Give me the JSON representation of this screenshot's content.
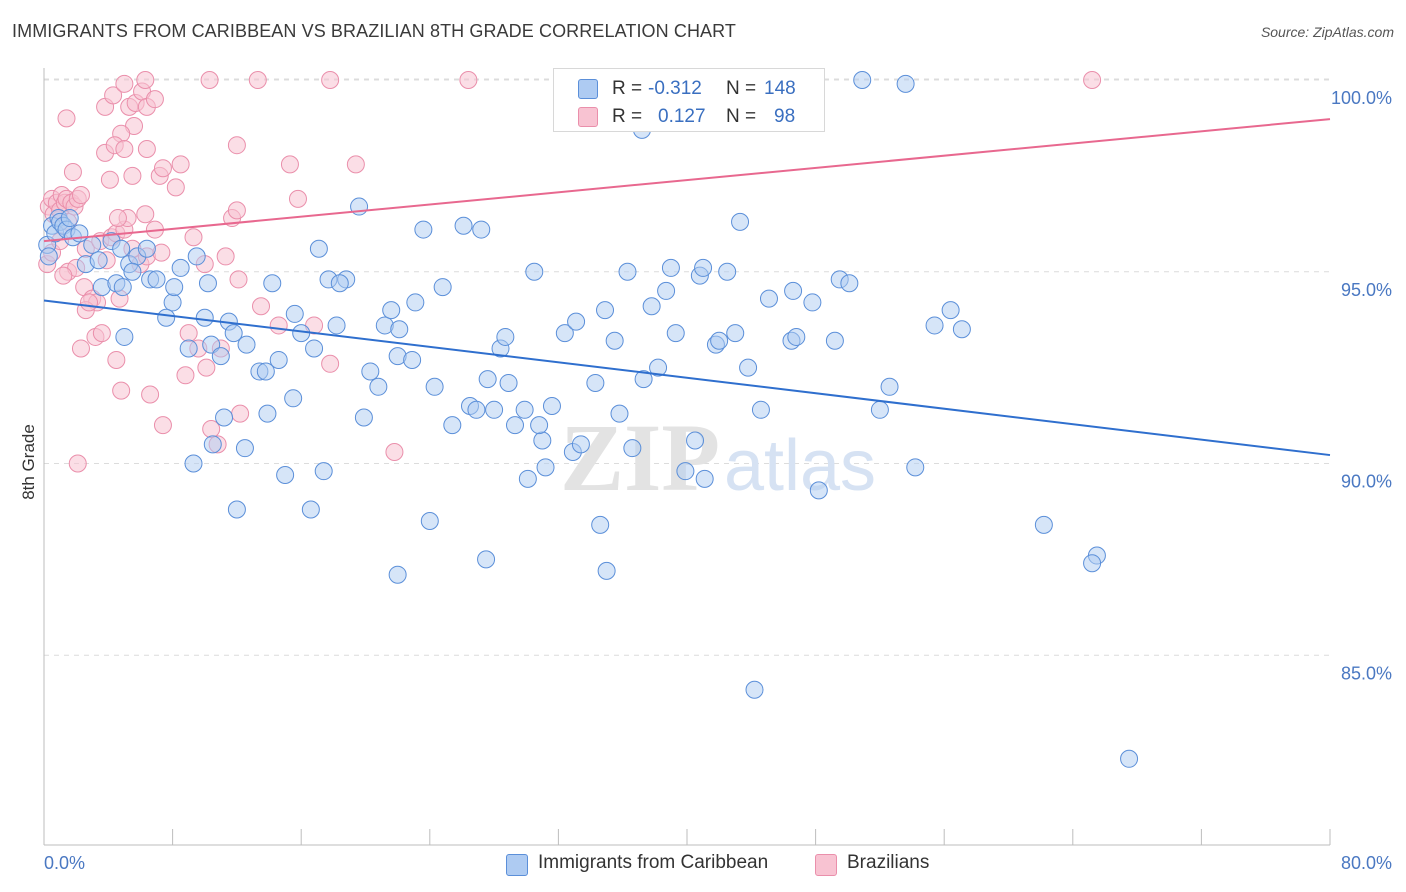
{
  "title": "IMMIGRANTS FROM CARIBBEAN VS BRAZILIAN 8TH GRADE CORRELATION CHART",
  "source": "Source: ZipAtlas.com",
  "watermark": {
    "zip": "ZIP",
    "atlas": "atlas"
  },
  "legend": {
    "rows": [
      {
        "r_label": "R =",
        "r_value": "-0.312",
        "n_label": "N =",
        "n_value": "148"
      },
      {
        "r_label": "R =",
        "r_value": "0.127",
        "n_label": "N =",
        "n_value": "98"
      }
    ]
  },
  "bottom_legend": {
    "caribbean": "Immigrants from Caribbean",
    "brazilians": "Brazilians"
  },
  "colors": {
    "caribbean_fill": "#aecbf2",
    "caribbean_stroke": "#5b8fd9",
    "caribbean_line": "#2f6fce",
    "brazilian_fill": "#f8c3d2",
    "brazilian_stroke": "#ea8fab",
    "brazilian_line": "#e8688f",
    "grid": "#dcdcdc",
    "tick_text": "#4a78c2"
  },
  "chart_data": {
    "type": "scatter",
    "xlabel": "",
    "ylabel": "8th Grade",
    "xlim": [
      0,
      80
    ],
    "ylim": [
      80.5,
      100.6
    ],
    "x_tick_labels": [
      "0.0%",
      "80.0%"
    ],
    "y_ticks": [
      {
        "value": 100,
        "label": "100.0%"
      },
      {
        "value": 95,
        "label": "95.0%"
      },
      {
        "value": 90,
        "label": "90.0%"
      },
      {
        "value": 85,
        "label": "85.0%"
      }
    ],
    "grid": true,
    "series": [
      {
        "name": "Immigrants from Caribbean",
        "trend": {
          "x": [
            0,
            80
          ],
          "y": [
            94.25,
            90.22
          ]
        },
        "points": [
          [
            0.2,
            95.7
          ],
          [
            0.3,
            95.4
          ],
          [
            0.5,
            96.2
          ],
          [
            0.7,
            96.0
          ],
          [
            0.9,
            96.4
          ],
          [
            1.0,
            96.3
          ],
          [
            1.2,
            96.2
          ],
          [
            1.4,
            96.1
          ],
          [
            1.6,
            96.4
          ],
          [
            1.8,
            95.9
          ],
          [
            2.2,
            96.0
          ],
          [
            2.6,
            95.2
          ],
          [
            3.0,
            95.7
          ],
          [
            3.4,
            95.3
          ],
          [
            3.6,
            94.6
          ],
          [
            4.2,
            95.8
          ],
          [
            4.8,
            95.6
          ],
          [
            5.3,
            95.2
          ],
          [
            5.8,
            95.4
          ],
          [
            6.4,
            95.6
          ],
          [
            4.5,
            94.7
          ],
          [
            4.9,
            94.6
          ],
          [
            5.5,
            95.0
          ],
          [
            6.6,
            94.8
          ],
          [
            7.0,
            94.8
          ],
          [
            8.0,
            94.2
          ],
          [
            8.5,
            95.1
          ],
          [
            9.5,
            95.4
          ],
          [
            10.2,
            94.7
          ],
          [
            7.6,
            93.8
          ],
          [
            8.1,
            94.6
          ],
          [
            5.0,
            93.3
          ],
          [
            9.0,
            93.0
          ],
          [
            10.4,
            93.1
          ],
          [
            10.0,
            93.8
          ],
          [
            11.5,
            93.7
          ],
          [
            11.8,
            93.4
          ],
          [
            11.0,
            92.8
          ],
          [
            12.6,
            93.1
          ],
          [
            13.4,
            92.4
          ],
          [
            13.8,
            92.4
          ],
          [
            14.6,
            92.7
          ],
          [
            14.2,
            94.7
          ],
          [
            15.6,
            93.9
          ],
          [
            16.0,
            93.4
          ],
          [
            16.8,
            93.0
          ],
          [
            17.1,
            95.6
          ],
          [
            17.7,
            94.8
          ],
          [
            18.2,
            93.6
          ],
          [
            18.8,
            94.8
          ],
          [
            18.4,
            94.7
          ],
          [
            19.6,
            96.7
          ],
          [
            19.9,
            91.2
          ],
          [
            20.3,
            92.4
          ],
          [
            20.8,
            92.0
          ],
          [
            21.2,
            93.6
          ],
          [
            21.6,
            94.0
          ],
          [
            22.0,
            92.8
          ],
          [
            22.1,
            93.5
          ],
          [
            22.9,
            92.7
          ],
          [
            23.1,
            94.2
          ],
          [
            23.6,
            96.1
          ],
          [
            24.3,
            92.0
          ],
          [
            24.8,
            94.6
          ],
          [
            25.4,
            91.0
          ],
          [
            26.1,
            96.2
          ],
          [
            26.5,
            91.5
          ],
          [
            27.2,
            96.1
          ],
          [
            27.6,
            92.2
          ],
          [
            28.0,
            91.4
          ],
          [
            28.4,
            93.0
          ],
          [
            28.9,
            92.1
          ],
          [
            28.7,
            93.3
          ],
          [
            29.3,
            91.0
          ],
          [
            29.9,
            91.4
          ],
          [
            30.1,
            89.6
          ],
          [
            30.5,
            95.0
          ],
          [
            31.0,
            90.6
          ],
          [
            31.2,
            89.9
          ],
          [
            31.6,
            91.5
          ],
          [
            32.4,
            93.4
          ],
          [
            32.9,
            90.3
          ],
          [
            33.1,
            93.7
          ],
          [
            33.4,
            90.5
          ],
          [
            34.3,
            92.1
          ],
          [
            34.6,
            88.4
          ],
          [
            34.9,
            94.0
          ],
          [
            35.5,
            93.2
          ],
          [
            35.8,
            91.3
          ],
          [
            36.3,
            95.0
          ],
          [
            36.6,
            90.4
          ],
          [
            35.0,
            87.2
          ],
          [
            37.3,
            92.2
          ],
          [
            37.8,
            94.1
          ],
          [
            38.2,
            92.5
          ],
          [
            38.7,
            94.5
          ],
          [
            39.0,
            95.1
          ],
          [
            39.3,
            93.4
          ],
          [
            39.9,
            89.8
          ],
          [
            40.5,
            90.6
          ],
          [
            40.8,
            94.9
          ],
          [
            41.1,
            89.6
          ],
          [
            41.8,
            93.1
          ],
          [
            42.0,
            93.2
          ],
          [
            42.5,
            95.0
          ],
          [
            43.0,
            93.4
          ],
          [
            43.8,
            92.5
          ],
          [
            45.1,
            94.3
          ],
          [
            44.6,
            91.4
          ],
          [
            46.6,
            94.5
          ],
          [
            46.5,
            93.2
          ],
          [
            46.8,
            93.3
          ],
          [
            47.8,
            94.2
          ],
          [
            48.2,
            89.3
          ],
          [
            49.2,
            93.2
          ],
          [
            49.5,
            94.8
          ],
          [
            50.1,
            94.7
          ],
          [
            52.0,
            91.4
          ],
          [
            52.6,
            92.0
          ],
          [
            54.2,
            89.9
          ],
          [
            55.4,
            93.6
          ],
          [
            56.4,
            94.0
          ],
          [
            57.1,
            93.5
          ],
          [
            62.2,
            88.4
          ],
          [
            65.5,
            87.6
          ],
          [
            65.2,
            87.4
          ],
          [
            43.3,
            96.3
          ],
          [
            41.0,
            95.1
          ],
          [
            50.9,
            100.0
          ],
          [
            53.6,
            99.9
          ],
          [
            37.2,
            98.7
          ],
          [
            44.2,
            84.1
          ],
          [
            67.5,
            82.3
          ],
          [
            12.0,
            88.8
          ],
          [
            16.6,
            88.8
          ],
          [
            22.0,
            87.1
          ],
          [
            24.0,
            88.5
          ],
          [
            27.5,
            87.5
          ],
          [
            15.0,
            89.7
          ],
          [
            17.4,
            89.8
          ],
          [
            12.5,
            90.4
          ],
          [
            10.5,
            90.5
          ],
          [
            9.3,
            90.0
          ],
          [
            11.2,
            91.2
          ],
          [
            13.9,
            91.3
          ],
          [
            15.5,
            91.7
          ],
          [
            30.8,
            91.0
          ],
          [
            26.9,
            91.4
          ]
        ]
      },
      {
        "name": "Brazilians",
        "trend": {
          "x": [
            0,
            80
          ],
          "y": [
            95.8,
            98.98
          ]
        },
        "points": [
          [
            0.3,
            96.7
          ],
          [
            0.5,
            96.9
          ],
          [
            0.6,
            96.5
          ],
          [
            0.8,
            96.8
          ],
          [
            1.0,
            96.6
          ],
          [
            1.1,
            97.0
          ],
          [
            1.3,
            96.8
          ],
          [
            1.4,
            96.9
          ],
          [
            1.5,
            96.3
          ],
          [
            1.7,
            96.8
          ],
          [
            1.9,
            96.7
          ],
          [
            2.1,
            96.9
          ],
          [
            2.3,
            97.0
          ],
          [
            0.2,
            95.2
          ],
          [
            0.5,
            95.5
          ],
          [
            1.0,
            95.8
          ],
          [
            1.5,
            95.0
          ],
          [
            2.0,
            95.1
          ],
          [
            2.6,
            95.6
          ],
          [
            3.5,
            95.8
          ],
          [
            3.9,
            95.3
          ],
          [
            4.2,
            95.9
          ],
          [
            4.5,
            96.0
          ],
          [
            5.0,
            96.1
          ],
          [
            5.5,
            95.6
          ],
          [
            6.0,
            95.2
          ],
          [
            6.4,
            95.4
          ],
          [
            7.3,
            95.5
          ],
          [
            9.3,
            95.9
          ],
          [
            10.0,
            95.2
          ],
          [
            11.3,
            95.4
          ],
          [
            2.5,
            94.6
          ],
          [
            3.0,
            94.3
          ],
          [
            3.3,
            94.2
          ],
          [
            4.7,
            94.3
          ],
          [
            2.6,
            94.0
          ],
          [
            12.1,
            94.8
          ],
          [
            13.5,
            94.1
          ],
          [
            14.6,
            93.6
          ],
          [
            16.8,
            93.6
          ],
          [
            2.3,
            93.0
          ],
          [
            3.2,
            93.3
          ],
          [
            3.6,
            93.4
          ],
          [
            4.5,
            92.7
          ],
          [
            9.0,
            93.4
          ],
          [
            9.6,
            93.0
          ],
          [
            10.1,
            92.5
          ],
          [
            17.8,
            92.6
          ],
          [
            4.8,
            91.9
          ],
          [
            6.6,
            91.8
          ],
          [
            12.2,
            91.3
          ],
          [
            7.4,
            91.0
          ],
          [
            10.4,
            90.9
          ],
          [
            2.1,
            90.0
          ],
          [
            10.8,
            90.5
          ],
          [
            21.8,
            90.3
          ],
          [
            1.4,
            99.0
          ],
          [
            3.8,
            99.3
          ],
          [
            4.3,
            99.6
          ],
          [
            5.0,
            99.9
          ],
          [
            5.3,
            99.3
          ],
          [
            5.7,
            99.4
          ],
          [
            6.1,
            99.7
          ],
          [
            5.6,
            98.8
          ],
          [
            6.4,
            99.3
          ],
          [
            6.9,
            99.5
          ],
          [
            4.8,
            98.6
          ],
          [
            3.8,
            98.1
          ],
          [
            4.4,
            98.3
          ],
          [
            5.0,
            98.2
          ],
          [
            6.4,
            98.2
          ],
          [
            8.5,
            97.8
          ],
          [
            12.0,
            98.3
          ],
          [
            15.3,
            97.8
          ],
          [
            19.4,
            97.8
          ],
          [
            1.8,
            97.6
          ],
          [
            4.1,
            97.4
          ],
          [
            5.5,
            97.5
          ],
          [
            7.2,
            97.5
          ],
          [
            8.2,
            97.2
          ],
          [
            7.4,
            97.7
          ],
          [
            15.8,
            96.9
          ],
          [
            11.7,
            96.4
          ],
          [
            12.0,
            96.6
          ],
          [
            6.3,
            96.5
          ],
          [
            5.2,
            96.4
          ],
          [
            6.9,
            96.1
          ],
          [
            4.6,
            96.4
          ],
          [
            6.3,
            100.0
          ],
          [
            10.3,
            100.0
          ],
          [
            13.3,
            100.0
          ],
          [
            17.8,
            100.0
          ],
          [
            26.4,
            100.0
          ],
          [
            65.2,
            100.0
          ],
          [
            1.2,
            94.9
          ],
          [
            2.8,
            94.2
          ],
          [
            8.8,
            92.3
          ],
          [
            11.0,
            93.0
          ]
        ]
      }
    ]
  }
}
